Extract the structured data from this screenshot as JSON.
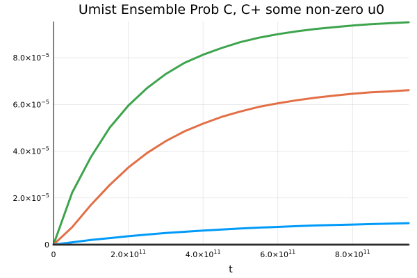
{
  "chart_data": {
    "type": "line",
    "title": "Umist Ensemble Prob C, C+ some non-zero u0",
    "xlabel": "t",
    "ylabel": "",
    "xlim": [
      0,
      950000000000.0
    ],
    "ylim": [
      0,
      9.55e-05
    ],
    "x_ticks": [
      {
        "value": 0,
        "mantissa": "0",
        "exp": ""
      },
      {
        "value": 200000000000.0,
        "mantissa": "2.0×10",
        "exp": "11"
      },
      {
        "value": 400000000000.0,
        "mantissa": "4.0×10",
        "exp": "11"
      },
      {
        "value": 600000000000.0,
        "mantissa": "6.0×10",
        "exp": "11"
      },
      {
        "value": 800000000000.0,
        "mantissa": "8.0×10",
        "exp": "11"
      }
    ],
    "y_ticks": [
      {
        "value": 0,
        "mantissa": "0",
        "exp": ""
      },
      {
        "value": 2e-05,
        "mantissa": "2.0×10",
        "exp": "−5"
      },
      {
        "value": 4e-05,
        "mantissa": "4.0×10",
        "exp": "−5"
      },
      {
        "value": 6e-05,
        "mantissa": "6.0×10",
        "exp": "−5"
      },
      {
        "value": 8e-05,
        "mantissa": "8.0×10",
        "exp": "−5"
      }
    ],
    "grid": true,
    "legend": "none",
    "x": [
      0,
      50000000000.0,
      100000000000.0,
      150000000000.0,
      200000000000.0,
      250000000000.0,
      300000000000.0,
      350000000000.0,
      400000000000.0,
      450000000000.0,
      500000000000.0,
      550000000000.0,
      600000000000.0,
      650000000000.0,
      700000000000.0,
      750000000000.0,
      800000000000.0,
      850000000000.0,
      900000000000.0,
      950000000000.0
    ],
    "series": [
      {
        "color": "#3da44d",
        "values": [
          0,
          2.23e-05,
          3.75e-05,
          5e-05,
          5.95e-05,
          6.7e-05,
          7.3e-05,
          7.78e-05,
          8.13e-05,
          8.42e-05,
          8.67e-05,
          8.86e-05,
          9.01e-05,
          9.13e-05,
          9.23e-05,
          9.31e-05,
          9.38e-05,
          9.44e-05,
          9.48e-05,
          9.52e-05
        ]
      },
      {
        "color": "#e26f46",
        "values": [
          0,
          7.5e-06,
          1.7e-05,
          2.55e-05,
          3.3e-05,
          3.92e-05,
          4.43e-05,
          4.85e-05,
          5.18e-05,
          5.47e-05,
          5.7e-05,
          5.9e-05,
          6.05e-05,
          6.18e-05,
          6.29e-05,
          6.38e-05,
          6.46e-05,
          6.52e-05,
          6.56e-05,
          6.61e-05
        ]
      },
      {
        "color": "#009af9",
        "values": [
          0,
          1e-06,
          2e-06,
          2.8e-06,
          3.6e-06,
          4.3e-06,
          5e-06,
          5.5e-06,
          6e-06,
          6.5e-06,
          6.9e-06,
          7.3e-06,
          7.6e-06,
          7.9e-06,
          8.2e-06,
          8.4e-06,
          8.6e-06,
          8.8e-06,
          9e-06,
          9.2e-06
        ]
      },
      {
        "color": "#555555",
        "values": [
          0,
          0,
          0,
          0,
          0,
          0,
          0,
          0,
          0,
          0,
          0,
          0,
          0,
          0,
          0,
          0,
          0,
          0,
          0,
          0
        ]
      }
    ]
  }
}
